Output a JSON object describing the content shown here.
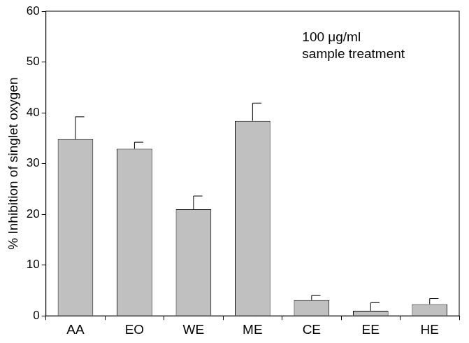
{
  "chart_data": {
    "type": "bar",
    "y_label": "% Inhibition of singlet oxygen",
    "annotation": [
      "100 μg/ml",
      "sample treatment"
    ],
    "categories": [
      "AA",
      "EO",
      "WE",
      "ME",
      "CE",
      "EE",
      "HE"
    ],
    "values": [
      34.8,
      32.9,
      21.0,
      38.4,
      3.1,
      1.0,
      2.3
    ],
    "errors": [
      4.4,
      1.3,
      2.6,
      3.5,
      0.9,
      1.6,
      1.1
    ],
    "color": "#c0c0c0",
    "ylim": [
      0,
      60
    ],
    "yticks": [
      0,
      10,
      20,
      30,
      40,
      50,
      60
    ],
    "grid": false
  }
}
